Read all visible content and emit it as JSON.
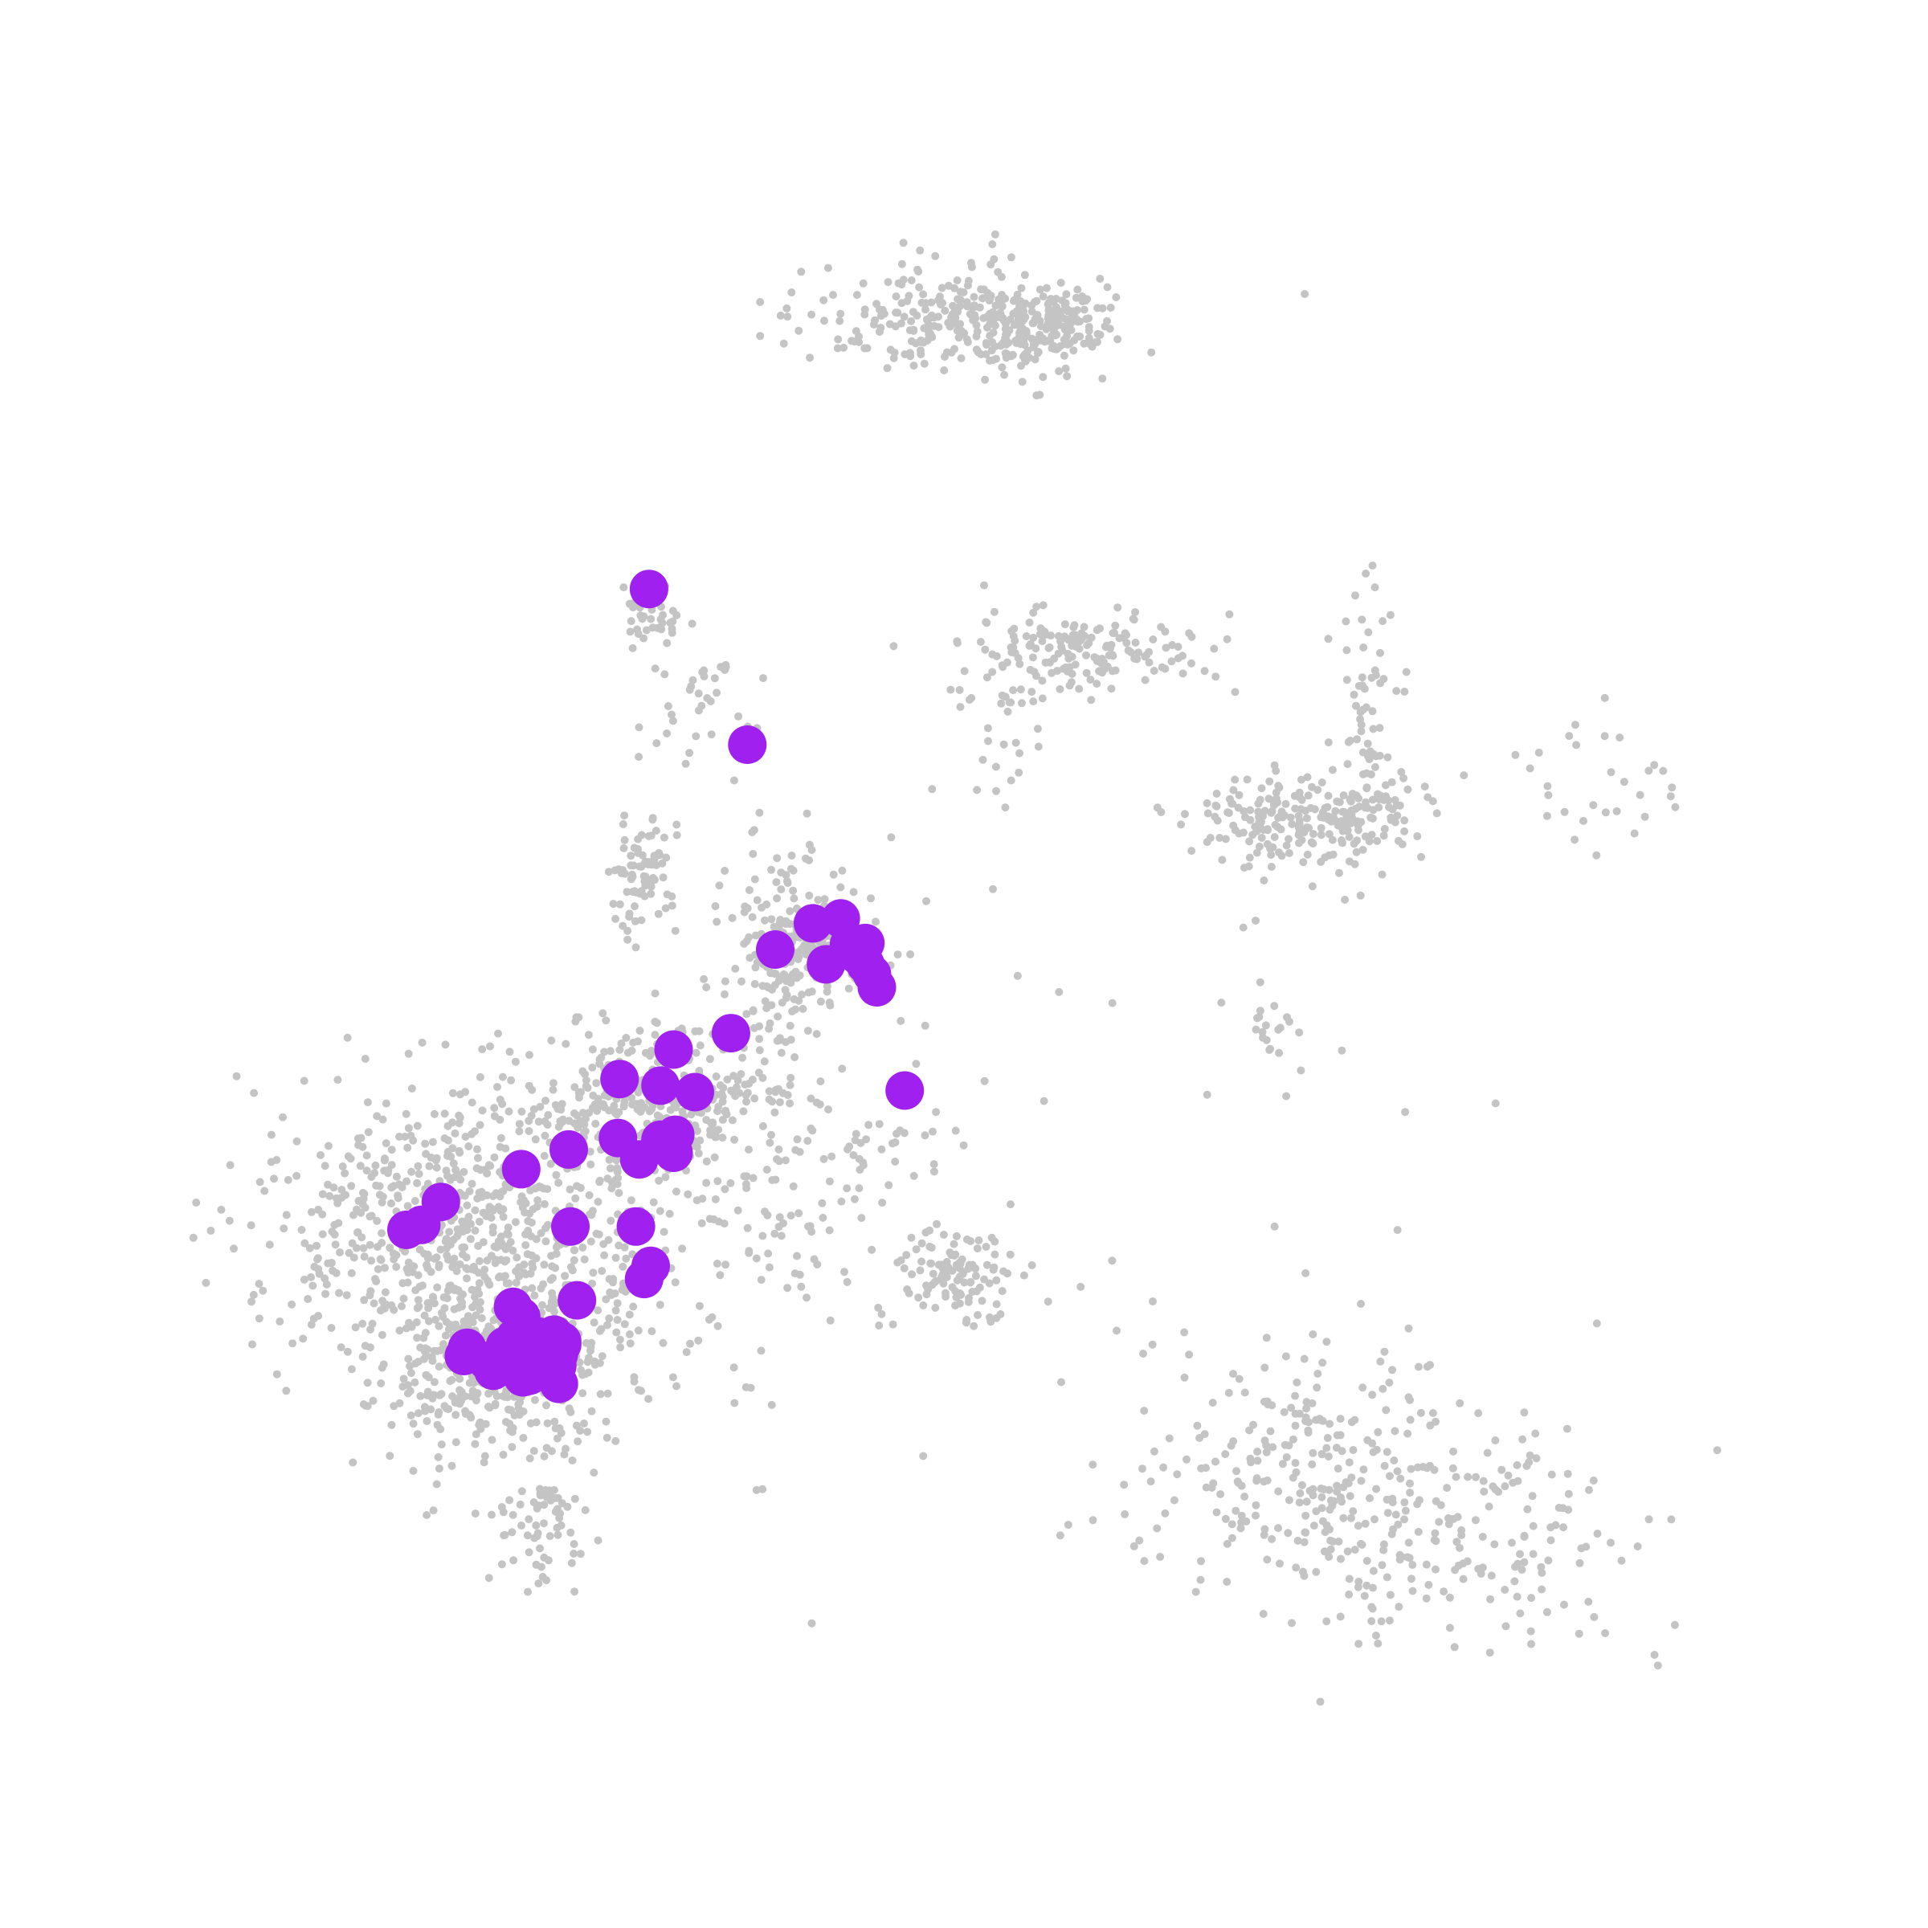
{
  "chart_data": {
    "type": "scatter",
    "title": "",
    "xlabel": "",
    "ylabel": "",
    "axes_visible": false,
    "grid": false,
    "legend": "none",
    "xlim": [
      0,
      100
    ],
    "ylim": [
      0,
      100
    ],
    "colors": {
      "background": "#c4c4c4",
      "highlight": "#a020f0"
    },
    "background_clusters": [
      {
        "name": "c1",
        "cx": 48.0,
        "cy": 88.4,
        "sx": 4.2,
        "sy": 1.6,
        "n": 260
      },
      {
        "name": "c2",
        "cx": 53.5,
        "cy": 87.9,
        "sx": 2.6,
        "sy": 1.3,
        "n": 170
      },
      {
        "name": "c3",
        "cx": 29.9,
        "cy": 70.5,
        "sx": 0.9,
        "sy": 1.1,
        "n": 40
      },
      {
        "name": "c4",
        "cx": 33.0,
        "cy": 65.4,
        "sx": 2.2,
        "sy": 2.0,
        "n": 35
      },
      {
        "name": "c5",
        "cx": 29.5,
        "cy": 54.5,
        "sx": 1.0,
        "sy": 2.0,
        "n": 80
      },
      {
        "name": "c6",
        "cx": 37.8,
        "cy": 50.5,
        "sx": 1.7,
        "sy": 3.4,
        "n": 150
      },
      {
        "name": "c7",
        "cx": 40.5,
        "cy": 50.0,
        "sx": 2.2,
        "sy": 1.4,
        "n": 100
      },
      {
        "name": "c8",
        "cx": 30.0,
        "cy": 40.5,
        "sx": 4.2,
        "sy": 2.4,
        "n": 320
      },
      {
        "name": "c9",
        "cx": 19.0,
        "cy": 32.0,
        "sx": 6.2,
        "sy": 5.2,
        "n": 900
      },
      {
        "name": "c10",
        "cx": 21.0,
        "cy": 24.0,
        "sx": 3.2,
        "sy": 2.2,
        "n": 280
      },
      {
        "name": "c11",
        "cx": 23.5,
        "cy": 15.0,
        "sx": 1.6,
        "sy": 2.0,
        "n": 70
      },
      {
        "name": "c12",
        "cx": 39.0,
        "cy": 36.0,
        "sx": 5.2,
        "sy": 4.2,
        "n": 140
      },
      {
        "name": "c13",
        "cx": 48.5,
        "cy": 30.0,
        "sx": 1.8,
        "sy": 1.4,
        "n": 110
      },
      {
        "name": "c14",
        "cx": 56.0,
        "cy": 68.0,
        "sx": 3.3,
        "sy": 1.2,
        "n": 170
      },
      {
        "name": "c15",
        "cx": 52.0,
        "cy": 64.0,
        "sx": 1.6,
        "sy": 2.3,
        "n": 30
      },
      {
        "name": "c16",
        "cx": 70.0,
        "cy": 58.0,
        "sx": 3.3,
        "sy": 1.3,
        "n": 230
      },
      {
        "name": "c17",
        "cx": 73.5,
        "cy": 63.5,
        "sx": 1.2,
        "sy": 4.2,
        "n": 70
      },
      {
        "name": "c18",
        "cx": 88.5,
        "cy": 59.0,
        "sx": 2.8,
        "sy": 2.7,
        "n": 30
      },
      {
        "name": "c19",
        "cx": 67.5,
        "cy": 45.0,
        "sx": 0.7,
        "sy": 1.3,
        "n": 18
      },
      {
        "name": "c20",
        "cx": 71.0,
        "cy": 18.0,
        "sx": 5.2,
        "sy": 4.7,
        "n": 300
      },
      {
        "name": "c21",
        "cx": 82.0,
        "cy": 14.5,
        "sx": 4.6,
        "sy": 3.6,
        "n": 120
      },
      {
        "name": "c22",
        "cx": 52.0,
        "cy": 40.0,
        "sx": 15.0,
        "sy": 15.0,
        "n": 60
      }
    ],
    "series": [
      {
        "type": "scatter",
        "x": [
          29.8,
          35.8,
          37.5,
          39.8,
          41.5,
          42.0,
          42.6,
          43.0,
          43.4,
          43.7,
          40.6,
          43.0,
          34.8,
          31.3,
          30.5,
          32.6,
          28.0,
          27.9,
          29.2,
          30.5,
          31.4,
          31.3,
          22.0,
          24.9,
          17.1,
          15.9,
          15.0,
          25.0,
          29.0,
          29.9,
          29.5,
          25.4,
          22.0,
          21.5,
          22.0,
          19.9,
          18.7,
          18.5,
          20.3,
          22.4,
          23.2,
          24.0,
          24.5,
          22.5,
          24.5,
          22.2,
          21.0,
          23.0,
          21.4,
          22.8,
          20.6,
          24.3,
          22.1,
          21.6,
          23.7,
          21.5,
          24.2,
          24.3,
          45.4
        ],
        "y": [
          71.9,
          62.4,
          49.9,
          51.5,
          51.8,
          50.2,
          49.5,
          49.0,
          48.4,
          47.6,
          49.0,
          50.3,
          44.8,
          43.8,
          41.6,
          41.2,
          42.0,
          38.4,
          37.1,
          38.3,
          38.6,
          37.5,
          36.5,
          37.7,
          34.5,
          33.1,
          32.8,
          33.0,
          33.0,
          30.6,
          29.8,
          28.5,
          27.5,
          28.1,
          25.4,
          24.8,
          25.6,
          25.1,
          24.2,
          25.8,
          24.6,
          26.4,
          25.8,
          23.9,
          26.0,
          26.6,
          25.7,
          26.3,
          24.6,
          24.6,
          24.7,
          25.2,
          23.8,
          26.2,
          25.1,
          24.5,
          24.5,
          23.4,
          41.3
        ]
      }
    ]
  }
}
